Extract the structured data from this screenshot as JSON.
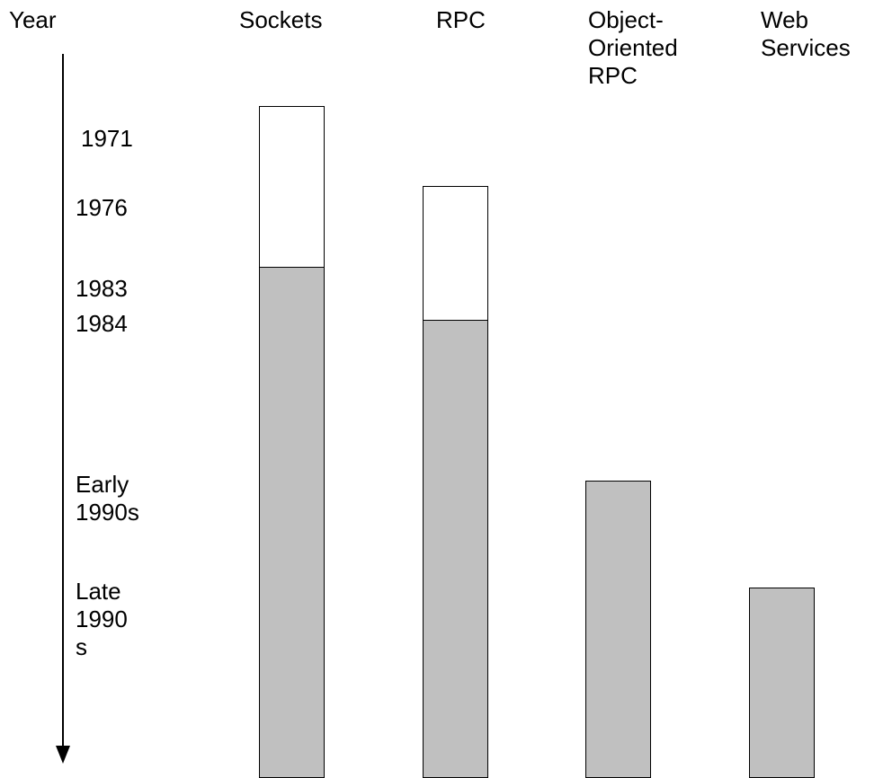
{
  "axis": {
    "label": "Year",
    "ticks": [
      {
        "key": "1971",
        "text": "1971"
      },
      {
        "key": "1976",
        "text": "1976"
      },
      {
        "key": "1983",
        "text": "1983"
      },
      {
        "key": "1984",
        "text": "1984"
      },
      {
        "key": "early-1990s",
        "text": "Early\n1990s"
      },
      {
        "key": "late-1990s",
        "text": "Late\n1990\ns"
      }
    ]
  },
  "columns": [
    {
      "key": "sockets",
      "label": "Sockets",
      "segments": [
        {
          "fill": "white",
          "from": "1971",
          "to": "1983"
        },
        {
          "fill": "gray",
          "from": "1983",
          "to": "present"
        }
      ]
    },
    {
      "key": "rpc",
      "label": "RPC",
      "segments": [
        {
          "fill": "white",
          "from": "1976",
          "to": "1984"
        },
        {
          "fill": "gray",
          "from": "1984",
          "to": "present"
        }
      ]
    },
    {
      "key": "object-oriented-rpc",
      "label": "Object-\nOriented\nRPC",
      "segments": [
        {
          "fill": "gray",
          "from": "early-1990s",
          "to": "present"
        }
      ]
    },
    {
      "key": "web-services",
      "label": "Web\nServices",
      "segments": [
        {
          "fill": "gray",
          "from": "late-1990s",
          "to": "present"
        }
      ]
    }
  ],
  "colors": {
    "white_segment": "#ffffff",
    "gray_segment": "#c0c0c0",
    "outline": "#000000"
  }
}
